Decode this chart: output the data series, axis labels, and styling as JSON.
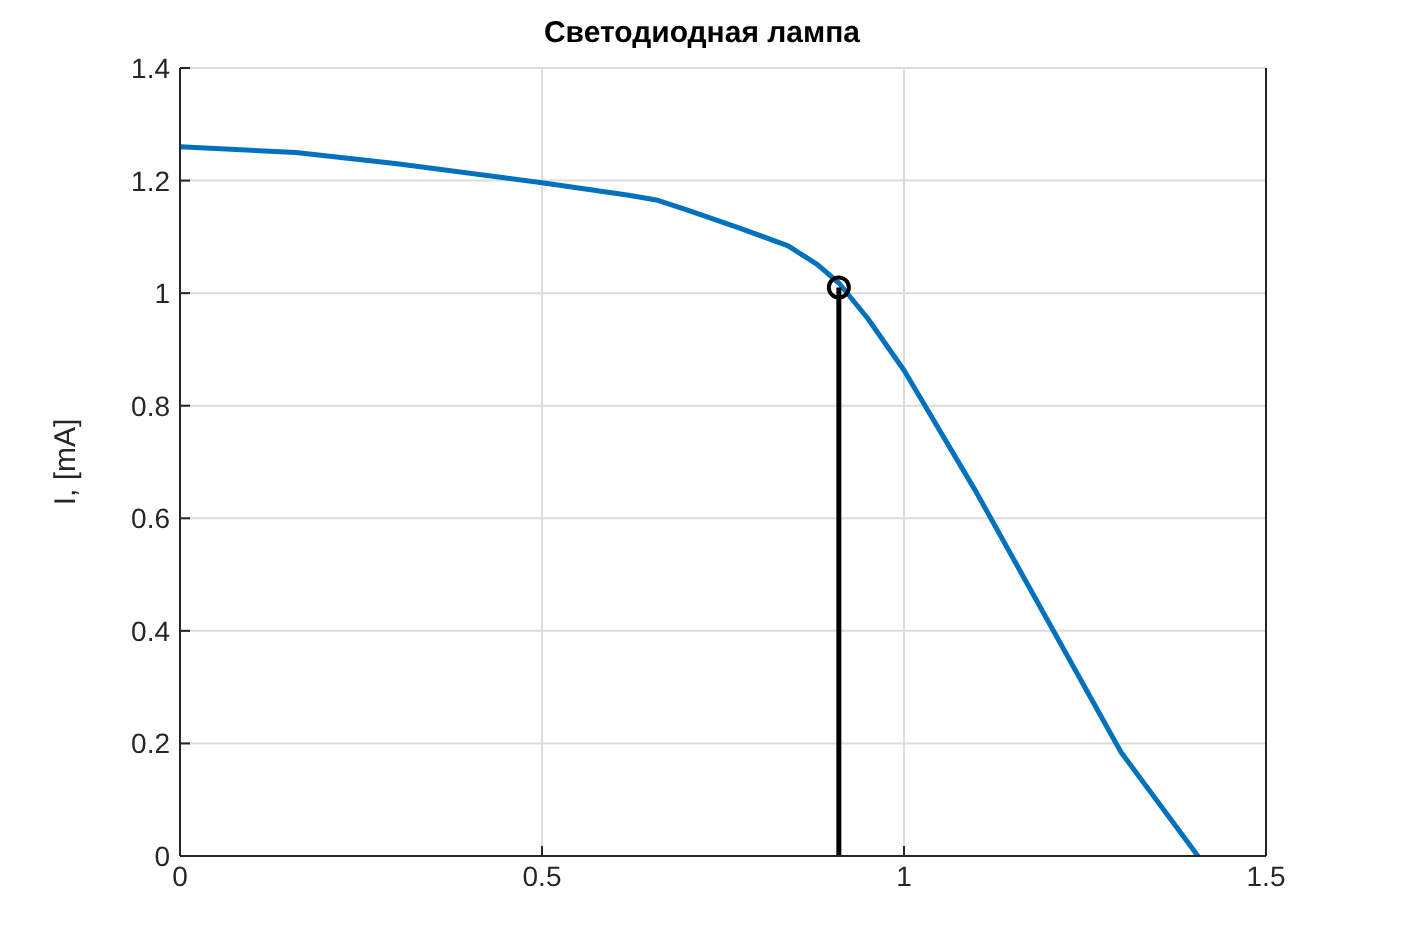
{
  "chart_data": {
    "type": "line",
    "title": "Светодиодная лампа",
    "ylabel": "I, [mA]",
    "xlim": [
      0,
      1.5
    ],
    "xticks": [
      0,
      0.5,
      1,
      1.5
    ],
    "ylim": [
      0,
      1.4
    ],
    "yticks": [
      0,
      0.2,
      0.4,
      0.6,
      0.8,
      1,
      1.2,
      1.4
    ],
    "grid": true,
    "series": [
      {
        "color": "#0072bd",
        "marker": "none",
        "x": [
          0,
          0.16,
          0.3,
          0.5,
          0.62,
          0.66,
          0.7,
          0.77,
          0.84,
          0.88,
          0.91,
          0.95,
          1.0,
          1.1,
          1.2,
          1.3,
          1.406
        ],
        "values": [
          1.26,
          1.25,
          1.23,
          1.196,
          1.174,
          1.165,
          1.148,
          1.117,
          1.084,
          1.051,
          1.018,
          0.955,
          0.863,
          0.646,
          0.415,
          0.184,
          0
        ]
      },
      {
        "color": "#000000",
        "marker": "none",
        "x": [
          0.91,
          0.91
        ],
        "values": [
          0,
          1.01
        ]
      },
      {
        "type": "scatter",
        "color": "#000000",
        "marker": "circle",
        "x": [
          0.91
        ],
        "values": [
          1.01
        ]
      }
    ]
  }
}
